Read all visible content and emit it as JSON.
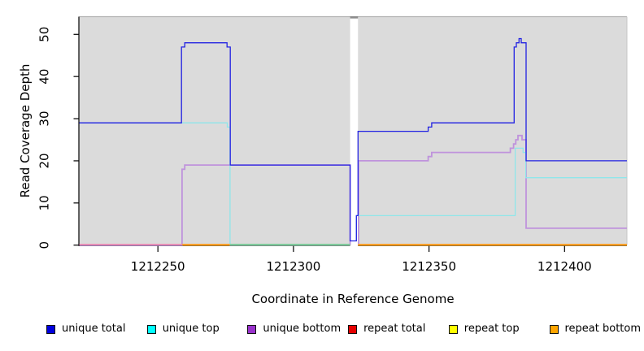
{
  "chart_data": {
    "type": "line",
    "step": "after",
    "title": "",
    "xlabel": "Coordinate in Reference Genome",
    "ylabel": "Read Coverage Depth",
    "xlim": [
      1212221,
      1212423
    ],
    "ylim": [
      0,
      54.2
    ],
    "x_ticks": [
      "1212250",
      "1212300",
      "1212350",
      "1212400"
    ],
    "x_tick_values": [
      1212250,
      1212300,
      1212350,
      1212400
    ],
    "y_ticks": [
      "0",
      "10",
      "20",
      "30",
      "40",
      "50"
    ],
    "y_tick_values": [
      0,
      10,
      20,
      30,
      40,
      50
    ],
    "grid": "off",
    "legend_position": "bottom",
    "background": "#dbdbdb",
    "panel_border_color": "#b3b3b3",
    "axis_color": "#000000",
    "gap_region": {
      "from": 1212320.9,
      "to": 1212323.8
    },
    "gap_band_color": "#ffffff",
    "gap_marker_color": "#8c8c8c",
    "draw_order": [
      3,
      4,
      5,
      2,
      1,
      0
    ],
    "series": [
      {
        "name": "unique total",
        "color": "#2222e2",
        "width": 1.3,
        "points": [
          [
            1212221,
            29
          ],
          [
            1212258.7,
            47
          ],
          [
            1212259.9,
            48
          ],
          [
            1212275.5,
            47
          ],
          [
            1212276.7,
            19
          ],
          [
            1212320.9,
            1
          ],
          [
            1212323.2,
            7
          ],
          [
            1212323.8,
            27
          ],
          [
            1212349.7,
            28
          ],
          [
            1212351,
            29
          ],
          [
            1212381.4,
            47
          ],
          [
            1212382.2,
            48
          ],
          [
            1212383.2,
            49
          ],
          [
            1212384,
            48
          ],
          [
            1212385.8,
            20
          ],
          [
            1212423,
            20
          ]
        ]
      },
      {
        "name": "unique top",
        "color": "#8fe6ea",
        "width": 1.3,
        "points": [
          [
            1212221,
            29
          ],
          [
            1212275.6,
            28
          ],
          [
            1212276.6,
            0
          ],
          [
            1212320.9,
            0
          ],
          [
            1212323.2,
            1,
            "move"
          ],
          [
            1212323.2,
            7
          ],
          [
            1212381.8,
            23
          ],
          [
            1212384.7,
            22
          ],
          [
            1212385.7,
            16
          ],
          [
            1212423,
            16
          ]
        ]
      },
      {
        "name": "unique bottom",
        "color": "#bf93dc",
        "width": 1.8,
        "points": [
          [
            1212221,
            0
          ],
          [
            1212258.9,
            18
          ],
          [
            1212259.9,
            19
          ],
          [
            1212320.9,
            0
          ],
          [
            1212324,
            0,
            "move"
          ],
          [
            1212324,
            20
          ],
          [
            1212349.7,
            21
          ],
          [
            1212351,
            22
          ],
          [
            1212380,
            23
          ],
          [
            1212381.2,
            24
          ],
          [
            1212382,
            25
          ],
          [
            1212382.8,
            26
          ],
          [
            1212384.3,
            25
          ],
          [
            1212385.8,
            4
          ],
          [
            1212423,
            4
          ]
        ]
      },
      {
        "name": "repeat total",
        "color": "#e60000",
        "width": 1.3,
        "points": [
          [
            1212221,
            0
          ],
          [
            1212320.9,
            0
          ],
          [
            1212323.8,
            0,
            "move"
          ],
          [
            1212423,
            0
          ]
        ]
      },
      {
        "name": "repeat top",
        "color": "#ffff00",
        "width": 1.3,
        "points": [
          [
            1212221,
            0
          ],
          [
            1212320.9,
            0
          ],
          [
            1212323.8,
            0,
            "move"
          ],
          [
            1212423,
            0
          ]
        ]
      },
      {
        "name": "repeat bottom",
        "color": "#ff9d1f",
        "width": 1.3,
        "points": [
          [
            1212221,
            0
          ],
          [
            1212320.9,
            0
          ],
          [
            1212323.8,
            0,
            "move"
          ],
          [
            1212423,
            0
          ]
        ]
      }
    ],
    "zero_line_segments": [
      {
        "from": 1212221,
        "to": 1212258.9,
        "color": "#f087ab"
      },
      {
        "from": 1212258.9,
        "to": 1212276.6,
        "color": "#ff9d1f"
      },
      {
        "from": 1212276.6,
        "to": 1212320.9,
        "color": "#74c488"
      },
      {
        "from": 1212323.8,
        "to": 1212423,
        "color": "#ff9d1f"
      }
    ],
    "legend": [
      {
        "label": "unique total",
        "color": "#0000dd"
      },
      {
        "label": "unique top",
        "color": "#00ffff"
      },
      {
        "label": "unique bottom",
        "color": "#9932cc"
      },
      {
        "label": "repeat total",
        "color": "#e60000"
      },
      {
        "label": "repeat top",
        "color": "#ffff00"
      },
      {
        "label": "repeat bottom",
        "color": "#ffa500"
      }
    ]
  }
}
